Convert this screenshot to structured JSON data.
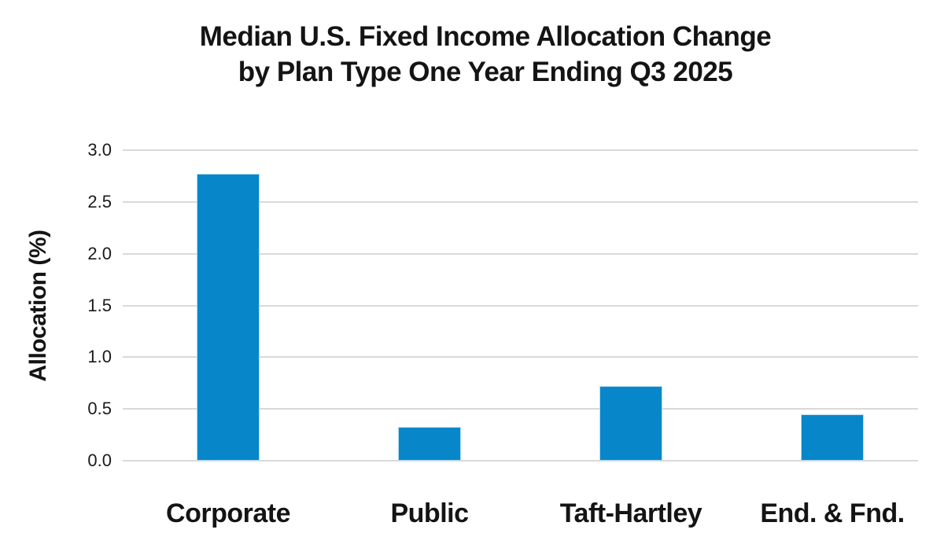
{
  "chart_data": {
    "type": "bar",
    "title": "Median U.S. Fixed Income Allocation Change by Plan Type One Year Ending Q3 2025",
    "title_line1": "Median U.S. Fixed Income Allocation Change",
    "title_line2": "by Plan Type One Year Ending Q3 2025",
    "ylabel": "Allocation (%)",
    "xlabel": "",
    "categories": [
      "Corporate",
      "Public",
      "Taft-Hartley",
      "End. & Fnd."
    ],
    "values": [
      2.77,
      0.33,
      0.72,
      0.45
    ],
    "ylim": [
      0,
      3.0
    ],
    "yticks": [
      "0.0",
      "0.5",
      "1.0",
      "1.5",
      "2.0",
      "2.5",
      "3.0"
    ],
    "grid": "horizontal",
    "legend_position": "none",
    "colors": {
      "bar": "#0787c9",
      "bar_edge": "#b5dcf2",
      "gridline": "#d9d9d9",
      "text": "#141414",
      "background": "#ffffff"
    }
  }
}
